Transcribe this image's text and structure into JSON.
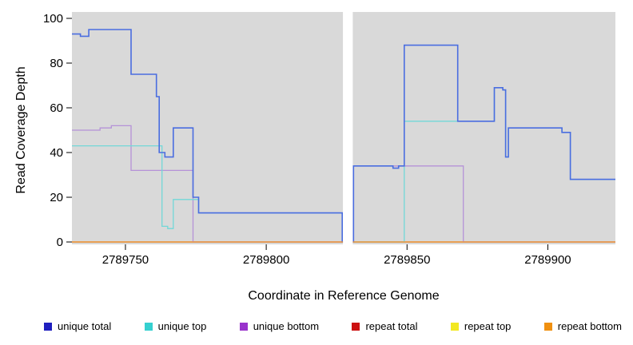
{
  "chart_data": {
    "type": "line",
    "style": "step",
    "title": "",
    "xlabel": "Coordinate in Reference Genome",
    "ylabel": "Read Coverage Depth",
    "xlim": [
      2789731,
      2789924
    ],
    "ylim": [
      0,
      100
    ],
    "x_ticks": [
      2789750,
      2789800,
      2789850,
      2789900
    ],
    "y_ticks": [
      0,
      20,
      40,
      60,
      80,
      100
    ],
    "grid": false,
    "plot_background": "#d9d9d9",
    "page_background": "#ffffff",
    "gap_region": [
      2789827,
      2789831
    ],
    "series": [
      {
        "name": "repeat total",
        "color": "#cc2222",
        "width": 1.2,
        "points": [
          [
            2789731,
            0
          ]
        ]
      },
      {
        "name": "repeat top",
        "color": "#f0e442",
        "width": 1.2,
        "points": [
          [
            2789731,
            0
          ]
        ]
      },
      {
        "name": "unique bottom",
        "color": "#b592d8",
        "width": 1.3,
        "points": [
          [
            2789731,
            50
          ],
          [
            2789741,
            51
          ],
          [
            2789745,
            52
          ],
          [
            2789752,
            32
          ],
          [
            2789774,
            0
          ],
          [
            2789831,
            34
          ],
          [
            2789870,
            0
          ]
        ]
      },
      {
        "name": "unique top",
        "color": "#72d8d8",
        "width": 1.3,
        "points": [
          [
            2789731,
            43
          ],
          [
            2789763,
            7
          ],
          [
            2789765,
            6
          ],
          [
            2789767,
            19
          ],
          [
            2789776,
            13
          ],
          [
            2789827,
            0
          ],
          [
            2789849,
            54
          ],
          [
            2789881,
            69
          ],
          [
            2789884,
            68
          ],
          [
            2789885,
            38
          ],
          [
            2789886,
            51
          ],
          [
            2789905,
            49
          ],
          [
            2789908,
            28
          ]
        ]
      },
      {
        "name": "unique total",
        "color": "#4a6de0",
        "width": 1.6,
        "points": [
          [
            2789731,
            93
          ],
          [
            2789734,
            92
          ],
          [
            2789737,
            95
          ],
          [
            2789752,
            75
          ],
          [
            2789761,
            65
          ],
          [
            2789762,
            40
          ],
          [
            2789764,
            38
          ],
          [
            2789767,
            51
          ],
          [
            2789774,
            20
          ],
          [
            2789776,
            13
          ],
          [
            2789827,
            0
          ],
          [
            2789831,
            34
          ],
          [
            2789845,
            33
          ],
          [
            2789847,
            34
          ],
          [
            2789849,
            88
          ],
          [
            2789868,
            54
          ],
          [
            2789881,
            69
          ],
          [
            2789884,
            68
          ],
          [
            2789885,
            38
          ],
          [
            2789886,
            51
          ],
          [
            2789905,
            49
          ],
          [
            2789908,
            28
          ]
        ]
      },
      {
        "name": "repeat bottom",
        "color": "#f09030",
        "width": 1.2,
        "points": [
          [
            2789731,
            0
          ]
        ]
      }
    ],
    "legend_position": "bottom",
    "legend": [
      {
        "label": "unique total",
        "color": "#1f1fbf"
      },
      {
        "label": "unique top",
        "color": "#35d0d0"
      },
      {
        "label": "unique bottom",
        "color": "#9933cc"
      },
      {
        "label": "repeat total",
        "color": "#cc1111"
      },
      {
        "label": "repeat top",
        "color": "#f2e822"
      },
      {
        "label": "repeat bottom",
        "color": "#f09010"
      }
    ]
  }
}
